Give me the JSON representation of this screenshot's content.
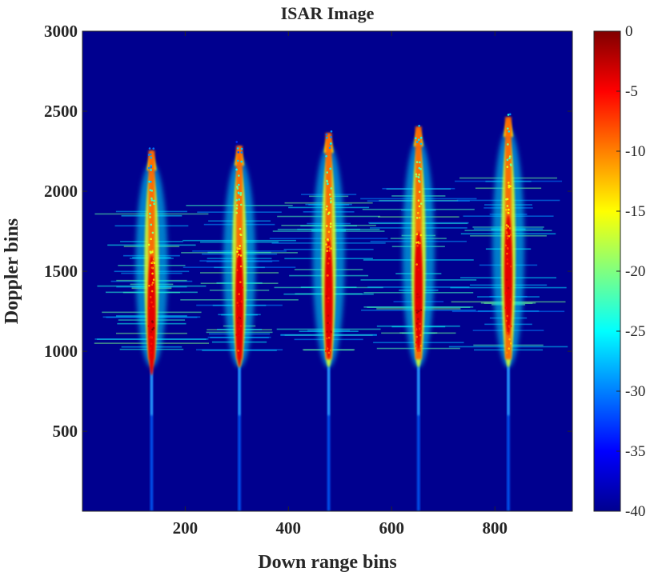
{
  "chart_data": {
    "type": "heatmap",
    "title": "ISAR Image",
    "xlabel": "Down range bins",
    "ylabel": "Doppler bins",
    "xlim": [
      1,
      950
    ],
    "ylim": [
      1,
      3000
    ],
    "xticks": [
      200,
      400,
      600,
      800
    ],
    "yticks": [
      500,
      1000,
      1500,
      2000,
      2500,
      3000
    ],
    "colormap": "jet",
    "colorbar": {
      "range": [
        -40,
        0
      ],
      "ticks": [
        0,
        -5,
        -10,
        -15,
        -20,
        -25,
        -30,
        -35,
        -40
      ],
      "colors": [
        "#00008f",
        "#0000ff",
        "#0080ff",
        "#00ffff",
        "#80ff80",
        "#ffff00",
        "#ff8000",
        "#ff0000",
        "#800000"
      ]
    },
    "background_level_db": -40,
    "scatterers": [
      {
        "x": 135,
        "y_top": 2330,
        "y_bottom": 950,
        "peak_y": 1150
      },
      {
        "x": 305,
        "y_top": 2360,
        "y_bottom": 950,
        "peak_y": 1200
      },
      {
        "x": 478,
        "y_top": 2440,
        "y_bottom": 950,
        "peak_y": 1250
      },
      {
        "x": 652,
        "y_top": 2480,
        "y_bottom": 950,
        "peak_y": 1300
      },
      {
        "x": 826,
        "y_top": 2540,
        "y_bottom": 950,
        "peak_y": 1400
      }
    ],
    "grid": false
  }
}
